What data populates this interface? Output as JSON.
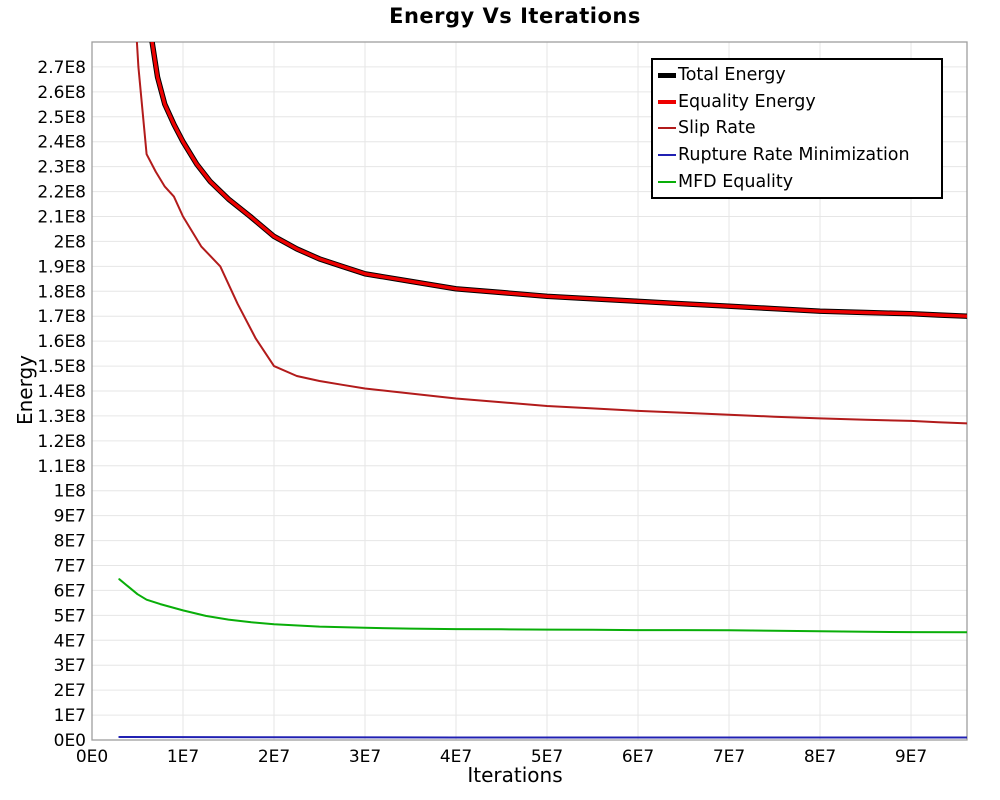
{
  "title": "Energy Vs Iterations",
  "chart_data": {
    "type": "line",
    "title": "Energy Vs Iterations",
    "xlabel": "Iterations",
    "ylabel": "Energy",
    "x_unit": "iterations, stored as multiples of 1e7",
    "y_unit": "energy, stored as multiples of 1e8",
    "xlim_e7": [
      0,
      9.615
    ],
    "ylim_e8": [
      0,
      2.8
    ],
    "grid": true,
    "legend_position": "top-right",
    "x_tick_labels": [
      "0E0",
      "1E7",
      "2E7",
      "3E7",
      "4E7",
      "5E7",
      "6E7",
      "7E7",
      "8E7",
      "9E7"
    ],
    "y_tick_labels": [
      "0E0",
      "1E7",
      "2E7",
      "3E7",
      "4E7",
      "5E7",
      "6E7",
      "7E7",
      "8E7",
      "9E7",
      "1E8",
      "1.1E8",
      "1.2E8",
      "1.3E8",
      "1.4E8",
      "1.5E8",
      "1.6E8",
      "1.7E8",
      "1.8E8",
      "1.9E8",
      "2E8",
      "2.1E8",
      "2.2E8",
      "2.3E8",
      "2.4E8",
      "2.5E8",
      "2.6E8",
      "2.7E8"
    ],
    "colors": {
      "grid": "#e6e6e6",
      "plot_border": "#9e9e9e",
      "background": "#ffffff"
    },
    "series": [
      {
        "name": "Total Energy",
        "color": "#000000",
        "line_width": 5.4,
        "x_e7": [
          0.62,
          0.66,
          0.72,
          0.8,
          0.9,
          1.0,
          1.15,
          1.3,
          1.5,
          1.74,
          2.0,
          2.25,
          2.5,
          2.75,
          3.0,
          3.5,
          4.0,
          4.5,
          5.0,
          5.5,
          6.0,
          6.5,
          7.0,
          7.5,
          8.0,
          8.5,
          9.0,
          9.3,
          9.62
        ],
        "y_e8": [
          3.0,
          2.8,
          2.66,
          2.55,
          2.47,
          2.4,
          2.31,
          2.24,
          2.17,
          2.1,
          2.02,
          1.97,
          1.93,
          1.9,
          1.87,
          1.84,
          1.81,
          1.795,
          1.78,
          1.77,
          1.76,
          1.75,
          1.74,
          1.73,
          1.72,
          1.715,
          1.71,
          1.705,
          1.7
        ]
      },
      {
        "name": "Equality Energy",
        "color": "#ee0000",
        "line_width": 3.4,
        "x_e7": [
          0.62,
          0.66,
          0.72,
          0.8,
          0.9,
          1.0,
          1.15,
          1.3,
          1.5,
          1.74,
          2.0,
          2.25,
          2.5,
          2.75,
          3.0,
          3.5,
          4.0,
          4.5,
          5.0,
          5.5,
          6.0,
          6.5,
          7.0,
          7.5,
          8.0,
          8.5,
          9.0,
          9.3,
          9.62
        ],
        "y_e8": [
          3.0,
          2.8,
          2.66,
          2.55,
          2.47,
          2.4,
          2.31,
          2.24,
          2.17,
          2.1,
          2.02,
          1.97,
          1.93,
          1.9,
          1.87,
          1.84,
          1.81,
          1.795,
          1.78,
          1.77,
          1.76,
          1.75,
          1.74,
          1.73,
          1.72,
          1.715,
          1.71,
          1.705,
          1.7
        ]
      },
      {
        "name": "Slip Rate",
        "color": "#b21b1b",
        "line_width": 2,
        "x_e7": [
          0.46,
          0.51,
          0.6,
          0.7,
          0.8,
          0.9,
          1.0,
          1.2,
          1.41,
          1.6,
          1.8,
          2.0,
          2.25,
          2.5,
          2.75,
          3.0,
          3.5,
          4.0,
          4.5,
          5.0,
          5.5,
          6.0,
          6.5,
          7.0,
          7.5,
          8.0,
          8.5,
          9.0,
          9.3,
          9.62
        ],
        "y_e8": [
          3.0,
          2.7,
          2.35,
          2.28,
          2.22,
          2.18,
          2.1,
          1.98,
          1.9,
          1.75,
          1.61,
          1.5,
          1.46,
          1.44,
          1.425,
          1.41,
          1.39,
          1.37,
          1.355,
          1.34,
          1.33,
          1.32,
          1.313,
          1.305,
          1.297,
          1.29,
          1.285,
          1.28,
          1.275,
          1.27
        ]
      },
      {
        "name": "Rupture Rate Minimization",
        "color": "#2020b2",
        "line_width": 2,
        "x_e7": [
          0.3,
          2.0,
          4.0,
          6.0,
          8.0,
          9.62
        ],
        "y_e8": [
          0.012,
          0.011,
          0.01,
          0.01,
          0.01,
          0.01
        ]
      },
      {
        "name": "MFD Equality",
        "color": "#09ae09",
        "line_width": 2,
        "x_e7": [
          0.3,
          0.4,
          0.5,
          0.6,
          0.75,
          1.0,
          1.25,
          1.5,
          1.75,
          2.0,
          2.5,
          3.0,
          3.5,
          4.0,
          4.5,
          5.0,
          5.5,
          6.0,
          6.5,
          7.0,
          7.5,
          8.0,
          8.5,
          9.0,
          9.62
        ],
        "y_e8": [
          0.645,
          0.615,
          0.585,
          0.563,
          0.545,
          0.52,
          0.498,
          0.483,
          0.472,
          0.464,
          0.455,
          0.45,
          0.447,
          0.445,
          0.444,
          0.443,
          0.442,
          0.441,
          0.441,
          0.44,
          0.438,
          0.436,
          0.434,
          0.433,
          0.432
        ]
      }
    ]
  }
}
